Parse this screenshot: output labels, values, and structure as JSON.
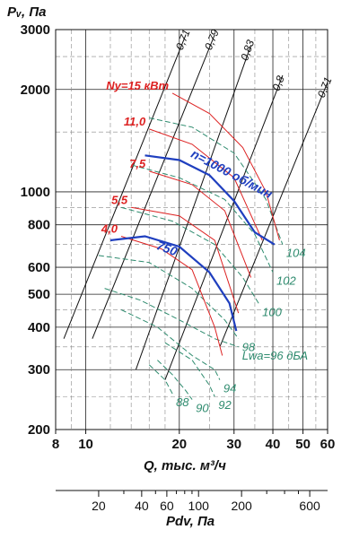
{
  "chart_data": {
    "type": "line",
    "y_axis": {
      "label": "Pᵥ, Па",
      "scale": "log",
      "range": [
        200,
        3000
      ],
      "ticks": [
        200,
        300,
        400,
        500,
        600,
        800,
        1000,
        2000,
        3000
      ],
      "tick_labels": [
        "200",
        "300",
        "400",
        "500",
        "600",
        "800",
        "1000",
        "2000",
        "3000"
      ]
    },
    "x_axis": {
      "label": "Q, тыс. м³/ч",
      "scale": "log",
      "range": [
        8,
        60
      ],
      "ticks": [
        8,
        10,
        20,
        30,
        40,
        50,
        60
      ],
      "tick_labels": [
        "8",
        "10",
        "20",
        "30",
        "40",
        "50",
        "60"
      ]
    },
    "x2_axis": {
      "label": "Pdv, Па",
      "scale": "log",
      "ticks": [
        20,
        40,
        60,
        100,
        200,
        600
      ],
      "tick_labels": [
        "20",
        "40",
        "60",
        "100",
        "200",
        "600"
      ]
    },
    "grid": true,
    "speed_curves": [
      {
        "name": "n=1000 об/мин",
        "points": [
          [
            15.5,
            1280
          ],
          [
            20,
            1240
          ],
          [
            25,
            1120
          ],
          [
            30,
            940
          ],
          [
            35,
            760
          ],
          [
            40.5,
            700
          ]
        ]
      },
      {
        "name": "750",
        "points": [
          [
            12,
            720
          ],
          [
            15.5,
            740
          ],
          [
            20,
            690
          ],
          [
            25,
            580
          ],
          [
            29,
            470
          ],
          [
            30.5,
            390
          ]
        ]
      }
    ],
    "power_curves": [
      {
        "name": "Nу=15 кВт",
        "label": "Nу=15 кВт",
        "points": [
          [
            19,
            1950
          ],
          [
            25,
            1700
          ],
          [
            32,
            1350
          ],
          [
            38,
            1000
          ],
          [
            42,
            720
          ]
        ]
      },
      {
        "name": "11,0",
        "label": "11,0",
        "points": [
          [
            16,
            1530
          ],
          [
            22,
            1380
          ],
          [
            30,
            1100
          ],
          [
            37,
            720
          ]
        ]
      },
      {
        "name": "7,5",
        "label": "7,5",
        "points": [
          [
            16,
            1150
          ],
          [
            22,
            1050
          ],
          [
            28,
            880
          ],
          [
            34,
            560
          ]
        ]
      },
      {
        "name": "5,5",
        "label": "5,5",
        "points": [
          [
            14,
            900
          ],
          [
            20,
            850
          ],
          [
            26,
            720
          ],
          [
            31,
            440
          ]
        ]
      },
      {
        "name": "4,0",
        "label": "4,0",
        "points": [
          [
            13,
            740
          ],
          [
            17.5,
            680
          ],
          [
            22,
            590
          ],
          [
            26,
            400
          ],
          [
            27.5,
            330
          ]
        ]
      }
    ],
    "efficiency_lines": [
      {
        "label": "0,71",
        "points": [
          [
            8.5,
            370
          ],
          [
            21,
            2900
          ]
        ]
      },
      {
        "label": "0,79",
        "points": [
          [
            10.5,
            370
          ],
          [
            26,
            2900
          ]
        ]
      },
      {
        "label": "0,83",
        "points": [
          [
            14.5,
            300
          ],
          [
            34,
            2700
          ]
        ]
      },
      {
        "label": "0,8",
        "points": [
          [
            18,
            280
          ],
          [
            43,
            2200
          ]
        ]
      },
      {
        "label": "0,71",
        "points": [
          [
            27,
            350
          ],
          [
            60,
            2100
          ]
        ]
      }
    ],
    "noise_curves": [
      {
        "label": "104",
        "points": [
          [
            16,
            1650
          ],
          [
            22,
            1550
          ],
          [
            30,
            1300
          ],
          [
            38,
            950
          ],
          [
            43,
            700
          ]
        ]
      },
      {
        "label": "102",
        "points": [
          [
            14,
            1200
          ],
          [
            20,
            1100
          ],
          [
            28,
            950
          ],
          [
            35,
            750
          ],
          [
            40,
            580
          ]
        ]
      },
      {
        "label": "100",
        "points": [
          [
            13,
            900
          ],
          [
            19,
            820
          ],
          [
            26,
            700
          ],
          [
            32,
            560
          ],
          [
            36,
            470
          ]
        ]
      },
      {
        "label": "98",
        "points": [
          [
            11,
            650
          ],
          [
            16,
            620
          ],
          [
            22,
            520
          ],
          [
            28,
            420
          ],
          [
            31,
            370
          ]
        ]
      },
      {
        "label": "Lwa=96 дБА",
        "points": [
          [
            11.5,
            520
          ],
          [
            15,
            480
          ],
          [
            20,
            420
          ],
          [
            26,
            370
          ],
          [
            31,
            350
          ]
        ]
      },
      {
        "label": "94",
        "points": [
          [
            13,
            450
          ],
          [
            17,
            400
          ],
          [
            22,
            330
          ],
          [
            26,
            300
          ],
          [
            27,
            280
          ]
        ]
      },
      {
        "label": "92",
        "points": [
          [
            18,
            360
          ],
          [
            22,
            320
          ],
          [
            25,
            270
          ],
          [
            26,
            250
          ]
        ]
      },
      {
        "label": "90",
        "points": [
          [
            17,
            320
          ],
          [
            19,
            290
          ],
          [
            21,
            260
          ],
          [
            22,
            245
          ]
        ]
      },
      {
        "label": "88",
        "points": [
          [
            16,
            310
          ],
          [
            18,
            280
          ],
          [
            19,
            255
          ]
        ]
      }
    ]
  },
  "colors": {
    "speed": "#1f3fbf",
    "power": "#dd2222",
    "noise": "#2e8b6e",
    "efficiency": "#111111",
    "grid": "#222222"
  }
}
